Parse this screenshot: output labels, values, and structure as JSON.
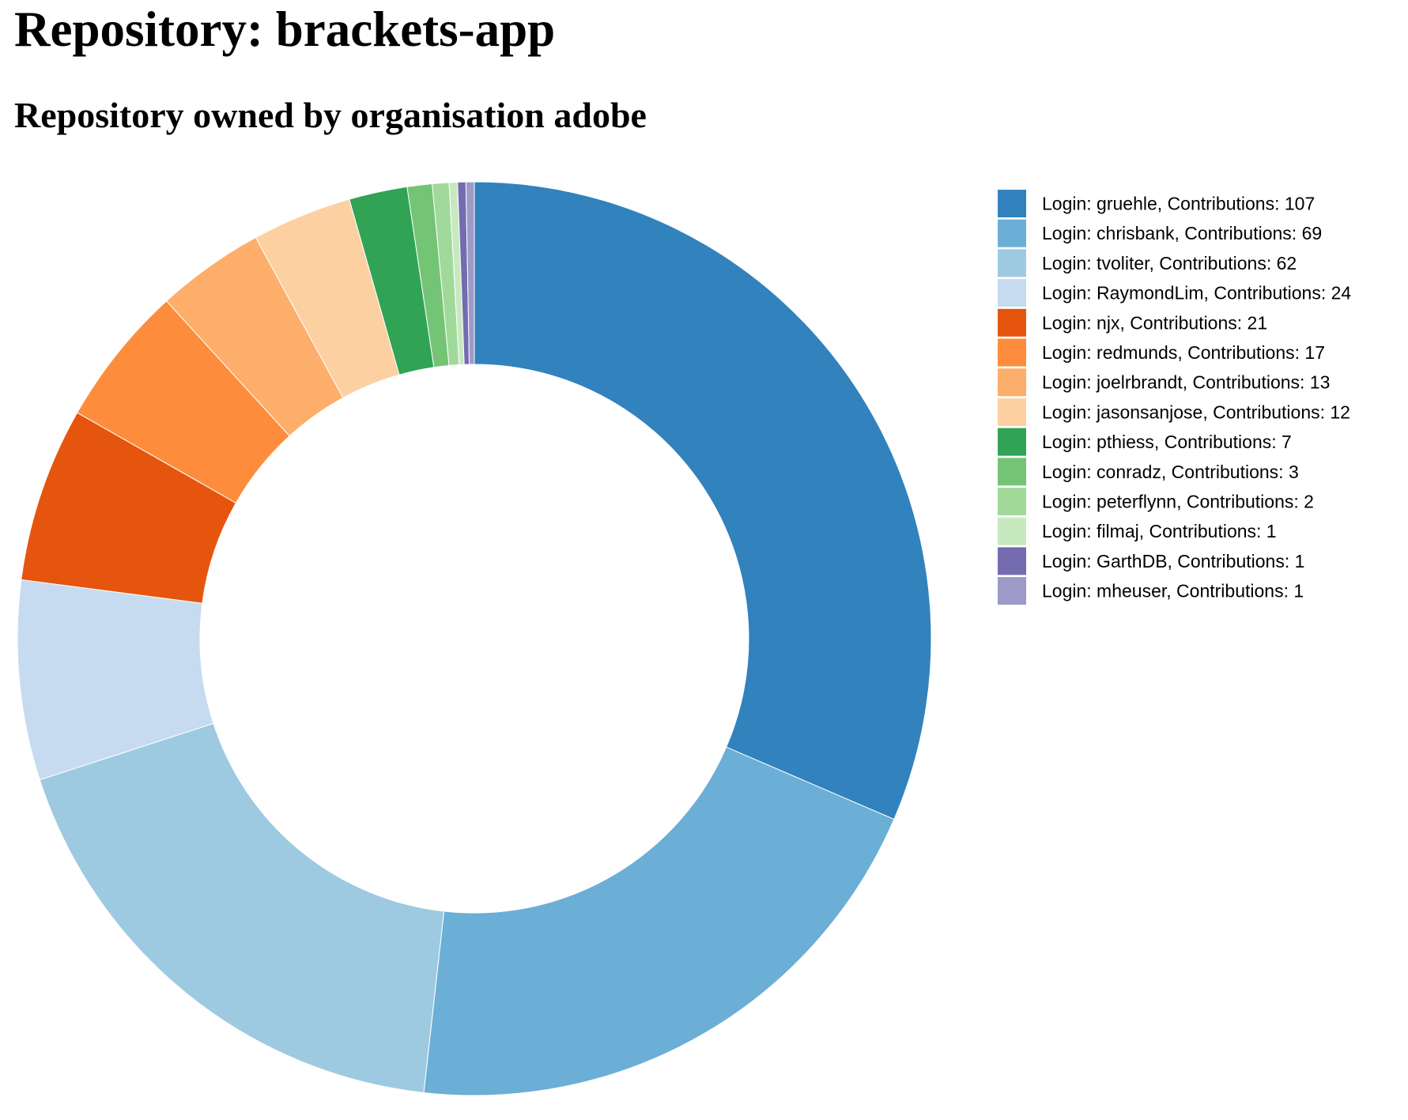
{
  "page": {
    "title": "Repository: brackets-app",
    "subtitle": "Repository owned by organisation adobe"
  },
  "chart_data": {
    "type": "pie",
    "donut": true,
    "legend_position": "right",
    "legend_label_format": "Login: {login}, Contributions: {value}",
    "slices": [
      {
        "login": "gruehle",
        "value": 107,
        "color": "#3182bd"
      },
      {
        "login": "chrisbank",
        "value": 69,
        "color": "#6baed6"
      },
      {
        "login": "tvoliter",
        "value": 62,
        "color": "#9ecae1"
      },
      {
        "login": "RaymondLim",
        "value": 24,
        "color": "#c6dbef"
      },
      {
        "login": "njx",
        "value": 21,
        "color": "#e6550d"
      },
      {
        "login": "redmunds",
        "value": 17,
        "color": "#fd8d3c"
      },
      {
        "login": "joelrbrandt",
        "value": 13,
        "color": "#fdae6b"
      },
      {
        "login": "jasonsanjose",
        "value": 12,
        "color": "#fdd0a2"
      },
      {
        "login": "pthiess",
        "value": 7,
        "color": "#31a354"
      },
      {
        "login": "conradz",
        "value": 3,
        "color": "#74c476"
      },
      {
        "login": "peterflynn",
        "value": 2,
        "color": "#a1d99b"
      },
      {
        "login": "filmaj",
        "value": 1,
        "color": "#c7e9c0"
      },
      {
        "login": "GarthDB",
        "value": 1,
        "color": "#756bb1"
      },
      {
        "login": "mheuser",
        "value": 1,
        "color": "#9e9ac8"
      }
    ]
  }
}
